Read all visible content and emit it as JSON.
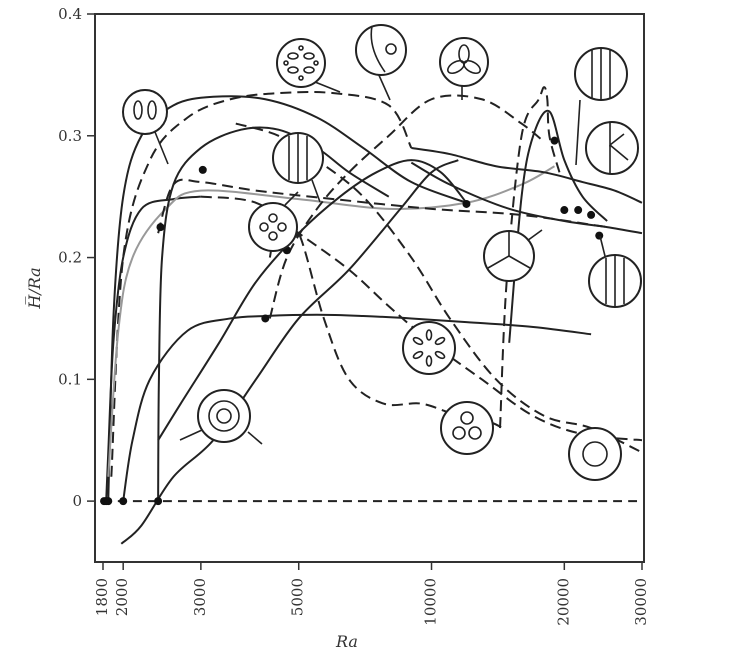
{
  "chart_data": {
    "type": "line",
    "xlabel": "Ra",
    "ylabel": "H̅/Ra",
    "x_scale": "log",
    "xlim": [
      1800,
      30000
    ],
    "ylim": [
      -0.05,
      0.4
    ],
    "x_ticks": [
      "1800",
      "2000",
      "3000",
      "5000",
      "10000",
      "20000",
      "30000"
    ],
    "x_tick_values": [
      1800,
      2000,
      3000,
      5000,
      10000,
      20000,
      30000
    ],
    "y_ticks": [
      "0",
      "0.1",
      "0.2",
      "0.3",
      "0.4"
    ],
    "y_tick_values": [
      0,
      0.1,
      0.2,
      0.3,
      0.4
    ],
    "grid": false,
    "series": [
      {
        "style": "dashed",
        "x": [
          1800,
          30000
        ],
        "y": [
          0,
          0
        ]
      },
      {
        "style": "solid",
        "x": [
          1850,
          1900,
          2000,
          2200,
          2600,
          3200,
          4200,
          5500,
          7000,
          9000,
          12000
        ],
        "y": [
          0,
          0.15,
          0.25,
          0.3,
          0.325,
          0.332,
          0.33,
          0.315,
          0.29,
          0.262,
          0.245
        ]
      },
      {
        "style": "dashed",
        "x": [
          1880,
          2000,
          2300,
          2800,
          3500,
          4500,
          6000,
          8000,
          9000
        ],
        "y": [
          0.02,
          0.2,
          0.28,
          0.315,
          0.33,
          0.335,
          0.335,
          0.325,
          0.29
        ]
      },
      {
        "style": "solid",
        "x": [
          1830,
          1850,
          1900,
          2000,
          2200,
          2600,
          3000
        ],
        "y": [
          0,
          0.04,
          0.13,
          0.2,
          0.24,
          0.248,
          0.25
        ]
      },
      {
        "style": "grey",
        "x": [
          1850,
          1950,
          2100,
          2500,
          3000,
          5000,
          8000,
          12000,
          16000,
          19000
        ],
        "y": [
          0.02,
          0.14,
          0.2,
          0.24,
          0.255,
          0.248,
          0.24,
          0.245,
          0.26,
          0.275
        ]
      },
      {
        "style": "dashed",
        "x": [
          2400,
          2600,
          3000,
          4000,
          6000,
          10000,
          16000,
          25000
        ],
        "y": [
          0.22,
          0.26,
          0.262,
          0.255,
          0.248,
          0.24,
          0.235,
          0.225
        ]
      },
      {
        "style": "solid",
        "x": [
          2000,
          2100,
          2300,
          2800,
          3500,
          4200,
          5500,
          7000,
          9000,
          12000,
          17000,
          23000
        ],
        "y": [
          0,
          0.05,
          0.1,
          0.14,
          0.15,
          0.152,
          0.153,
          0.152,
          0.15,
          0.147,
          0.143,
          0.137
        ]
      },
      {
        "style": "solid",
        "x": [
          2400,
          2410,
          2450,
          2600,
          3000,
          3700,
          4500,
          5500,
          6500,
          8000
        ],
        "y": [
          0,
          0.1,
          0.2,
          0.26,
          0.29,
          0.305,
          0.305,
          0.29,
          0.27,
          0.25
        ]
      },
      {
        "style": "solid",
        "x": [
          2400,
          2700,
          3300,
          4000,
          5000,
          6200,
          7500,
          9000,
          10500,
          12000
        ],
        "y": [
          0.05,
          0.08,
          0.13,
          0.18,
          0.22,
          0.25,
          0.27,
          0.28,
          0.27,
          0.245
        ]
      },
      {
        "style": "solid",
        "x": [
          1980,
          2200,
          2600,
          3200,
          4000,
          5000,
          6500,
          8500,
          10000,
          11500
        ],
        "y": [
          -0.035,
          -0.02,
          0.02,
          0.05,
          0.1,
          0.15,
          0.19,
          0.24,
          0.27,
          0.28
        ]
      },
      {
        "style": "dashed",
        "x": [
          3000,
          4000,
          5000,
          6500,
          8000,
          10000,
          13000,
          17000,
          22000,
          30000
        ],
        "y": [
          0.25,
          0.245,
          0.22,
          0.19,
          0.16,
          0.13,
          0.1,
          0.07,
          0.055,
          0.05
        ]
      },
      {
        "style": "dashed",
        "x": [
          3600,
          4500,
          5500,
          7000,
          9000,
          11000,
          14000,
          18000,
          23000,
          30000
        ],
        "y": [
          0.31,
          0.3,
          0.28,
          0.25,
          0.2,
          0.15,
          0.1,
          0.07,
          0.06,
          0.04
        ]
      },
      {
        "style": "dashed",
        "x": [
          4300,
          4500,
          5000,
          5700,
          6500,
          7800,
          9500,
          11500,
          13500,
          14500
        ],
        "y": [
          0.2,
          0.23,
          0.22,
          0.15,
          0.1,
          0.08,
          0.08,
          0.07,
          0.065,
          0.06
        ]
      },
      {
        "style": "dashed",
        "x": [
          4300,
          4700,
          5500,
          6500,
          8000,
          10000,
          13000,
          16000,
          18000
        ],
        "y": [
          0.15,
          0.2,
          0.24,
          0.27,
          0.3,
          0.33,
          0.33,
          0.31,
          0.295
        ]
      },
      {
        "style": "solid",
        "x": [
          9000,
          11000,
          14000,
          18000,
          22000,
          26000,
          30000
        ],
        "y": [
          0.29,
          0.285,
          0.275,
          0.27,
          0.262,
          0.255,
          0.245
        ]
      },
      {
        "style": "solid",
        "x": [
          9000,
          11000,
          15000,
          20000,
          25000,
          30000
        ],
        "y": [
          0.278,
          0.26,
          0.24,
          0.23,
          0.225,
          0.22
        ]
      },
      {
        "style": "solid",
        "x": [
          15000,
          16000,
          17000,
          18500,
          20000,
          22000,
          25000
        ],
        "y": [
          0.13,
          0.25,
          0.3,
          0.32,
          0.28,
          0.25,
          0.23
        ]
      },
      {
        "style": "dashed",
        "x": [
          14300,
          14800,
          16000,
          17500,
          18000,
          18300,
          18500,
          19500
        ],
        "y": [
          0.06,
          0.18,
          0.3,
          0.33,
          0.34,
          0.33,
          0.3,
          0.27
        ]
      }
    ],
    "bifurcation_points": {
      "x": [
        1810,
        1830,
        1850,
        2000,
        2400,
        2430,
        3030,
        4200,
        4700,
        12000,
        19000,
        20000,
        21500,
        23000,
        24000
      ],
      "y": [
        0,
        0,
        0,
        0,
        0,
        0.225,
        0.272,
        0.15,
        0.206,
        0.244,
        0.296,
        0.239,
        0.239,
        0.235,
        0.218
      ]
    }
  }
}
